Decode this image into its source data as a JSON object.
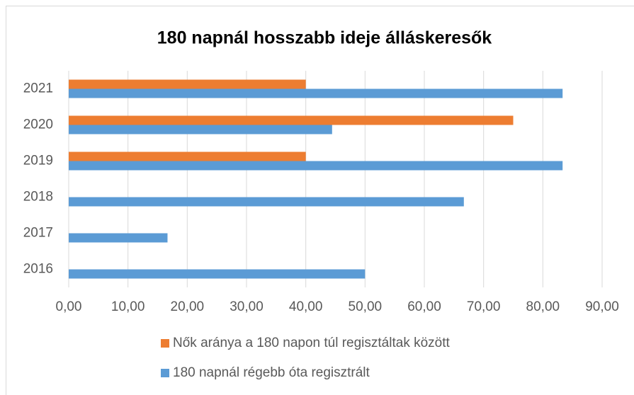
{
  "chart_data": {
    "type": "bar",
    "orientation": "horizontal",
    "title": "180 napnál hosszabb ideje álláskeresők",
    "categories": [
      "2016",
      "2017",
      "2018",
      "2019",
      "2020",
      "2021"
    ],
    "series": [
      {
        "name": "Nők aránya a 180 napon túl regisztáltak között",
        "color": "#ed7d31",
        "values": [
          null,
          null,
          null,
          40,
          75,
          40
        ]
      },
      {
        "name": "180 napnál régebb óta regisztrált",
        "color": "#5b9bd5",
        "values": [
          50,
          16.67,
          66.67,
          83.33,
          44.44,
          83.33
        ]
      }
    ],
    "xlim": [
      0,
      90
    ],
    "xticks": [
      {
        "value": 0,
        "label": "0,00"
      },
      {
        "value": 10,
        "label": "10,00"
      },
      {
        "value": 20,
        "label": "20,00"
      },
      {
        "value": 30,
        "label": "30,00"
      },
      {
        "value": 40,
        "label": "40,00"
      },
      {
        "value": 50,
        "label": "50,00"
      },
      {
        "value": 60,
        "label": "60,00"
      },
      {
        "value": 70,
        "label": "70,00"
      },
      {
        "value": 80,
        "label": "80,00"
      },
      {
        "value": 90,
        "label": "90,00"
      }
    ],
    "grid": true,
    "legend": "bottom"
  }
}
